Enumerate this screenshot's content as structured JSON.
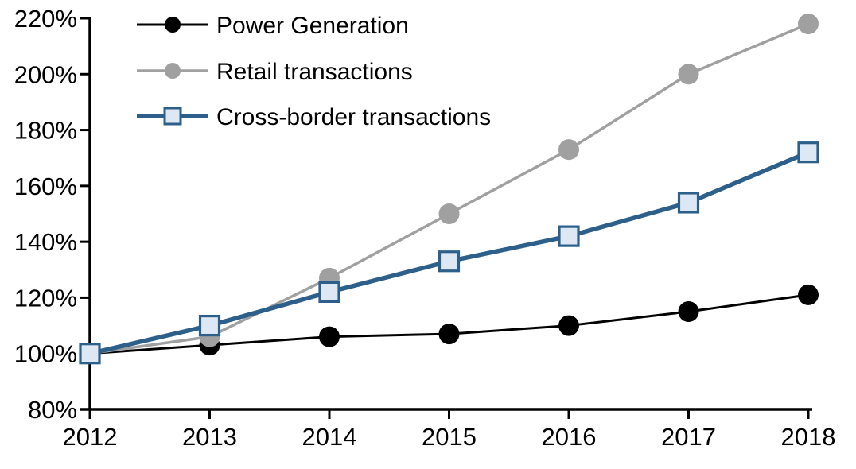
{
  "chart_data": {
    "type": "line",
    "title": "",
    "categories": [
      "2012",
      "2013",
      "2014",
      "2015",
      "2016",
      "2017",
      "2018"
    ],
    "series": [
      {
        "name": "Power Generation",
        "values": [
          100,
          103,
          106,
          107,
          110,
          115,
          121
        ],
        "color": "#000000",
        "marker": "circle",
        "marker_fill": "#000000",
        "line_width": 3
      },
      {
        "name": "Retail transactions",
        "values": [
          100,
          106,
          127,
          150,
          173,
          200,
          218
        ],
        "color": "#A0A0A0",
        "marker": "circle",
        "marker_fill": "#A0A0A0",
        "line_width": 3.5
      },
      {
        "name": "Cross-border transactions",
        "values": [
          100,
          110,
          122,
          133,
          142,
          154,
          172
        ],
        "color": "#2C5F8A",
        "marker": "square",
        "marker_fill": "#DEE8F4",
        "line_width": 5.5
      }
    ],
    "xlabel": "",
    "ylabel": "",
    "ylim": [
      80,
      220
    ],
    "ytick_step": 20,
    "ytick_labels": [
      "80%",
      "100%",
      "120%",
      "140%",
      "160%",
      "180%",
      "200%",
      "220%"
    ],
    "grid": false,
    "legend_position": "top-left",
    "axis_color": "#000000"
  }
}
